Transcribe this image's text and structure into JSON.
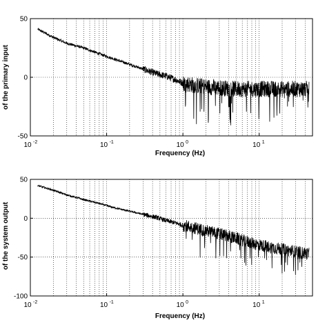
{
  "chart_data": [
    {
      "type": "line",
      "title": "",
      "xlabel": "Frequency (Hz)",
      "ylabel": "of the primary input",
      "x_scale": "log",
      "xlim": [
        0.01,
        50
      ],
      "ylim": [
        -50,
        50
      ],
      "x_ticks": [
        0.01,
        0.1,
        1,
        10
      ],
      "x_tick_labels": [
        "10",
        "10",
        "10",
        "10"
      ],
      "x_tick_exponents": [
        "-2",
        "-1",
        "0",
        "1"
      ],
      "y_ticks": [
        -50,
        0,
        50
      ],
      "y_tick_labels": [
        "-50",
        "0",
        "50"
      ],
      "grid": "dotted",
      "series": [
        {
          "color": "#000000",
          "trend_x": [
            0.0125,
            0.02,
            0.03,
            0.05,
            0.08,
            0.12,
            0.2,
            0.3,
            0.45,
            0.6,
            0.8,
            1.0,
            1.5,
            2,
            3,
            5,
            8,
            12,
            20,
            30,
            45
          ],
          "trend_y": [
            41,
            34,
            29,
            25,
            20,
            16,
            11,
            7,
            3,
            1,
            -2,
            -5,
            -7,
            -8,
            -9,
            -10,
            -10,
            -10,
            -10,
            -10,
            -10
          ],
          "noise_growth": [
            0.6,
            7
          ]
        }
      ]
    },
    {
      "type": "line",
      "title": "",
      "xlabel": "Frequency (Hz)",
      "ylabel": "of the system output",
      "x_scale": "log",
      "xlim": [
        0.01,
        50
      ],
      "ylim": [
        -100,
        50
      ],
      "x_ticks": [
        0.01,
        0.1,
        1,
        10
      ],
      "x_tick_labels": [
        "10",
        "10",
        "10",
        "10"
      ],
      "x_tick_exponents": [
        "-2",
        "-1",
        "0",
        "1"
      ],
      "y_ticks": [
        -100,
        -50,
        0,
        50
      ],
      "y_tick_labels": [
        "-100",
        "-50",
        "0",
        "50"
      ],
      "grid": "dotted",
      "series": [
        {
          "color": "#000000",
          "trend_x": [
            0.0125,
            0.02,
            0.03,
            0.05,
            0.08,
            0.12,
            0.2,
            0.3,
            0.45,
            0.6,
            0.8,
            1.0,
            1.5,
            2,
            3,
            5,
            8,
            12,
            20,
            30,
            45
          ],
          "trend_y": [
            42,
            36,
            30,
            24,
            19,
            14,
            9,
            5,
            1,
            -3,
            -6,
            -9,
            -13,
            -16,
            -20,
            -26,
            -32,
            -36,
            -40,
            -43,
            -46
          ],
          "noise_growth": [
            0.6,
            8
          ]
        }
      ]
    }
  ]
}
